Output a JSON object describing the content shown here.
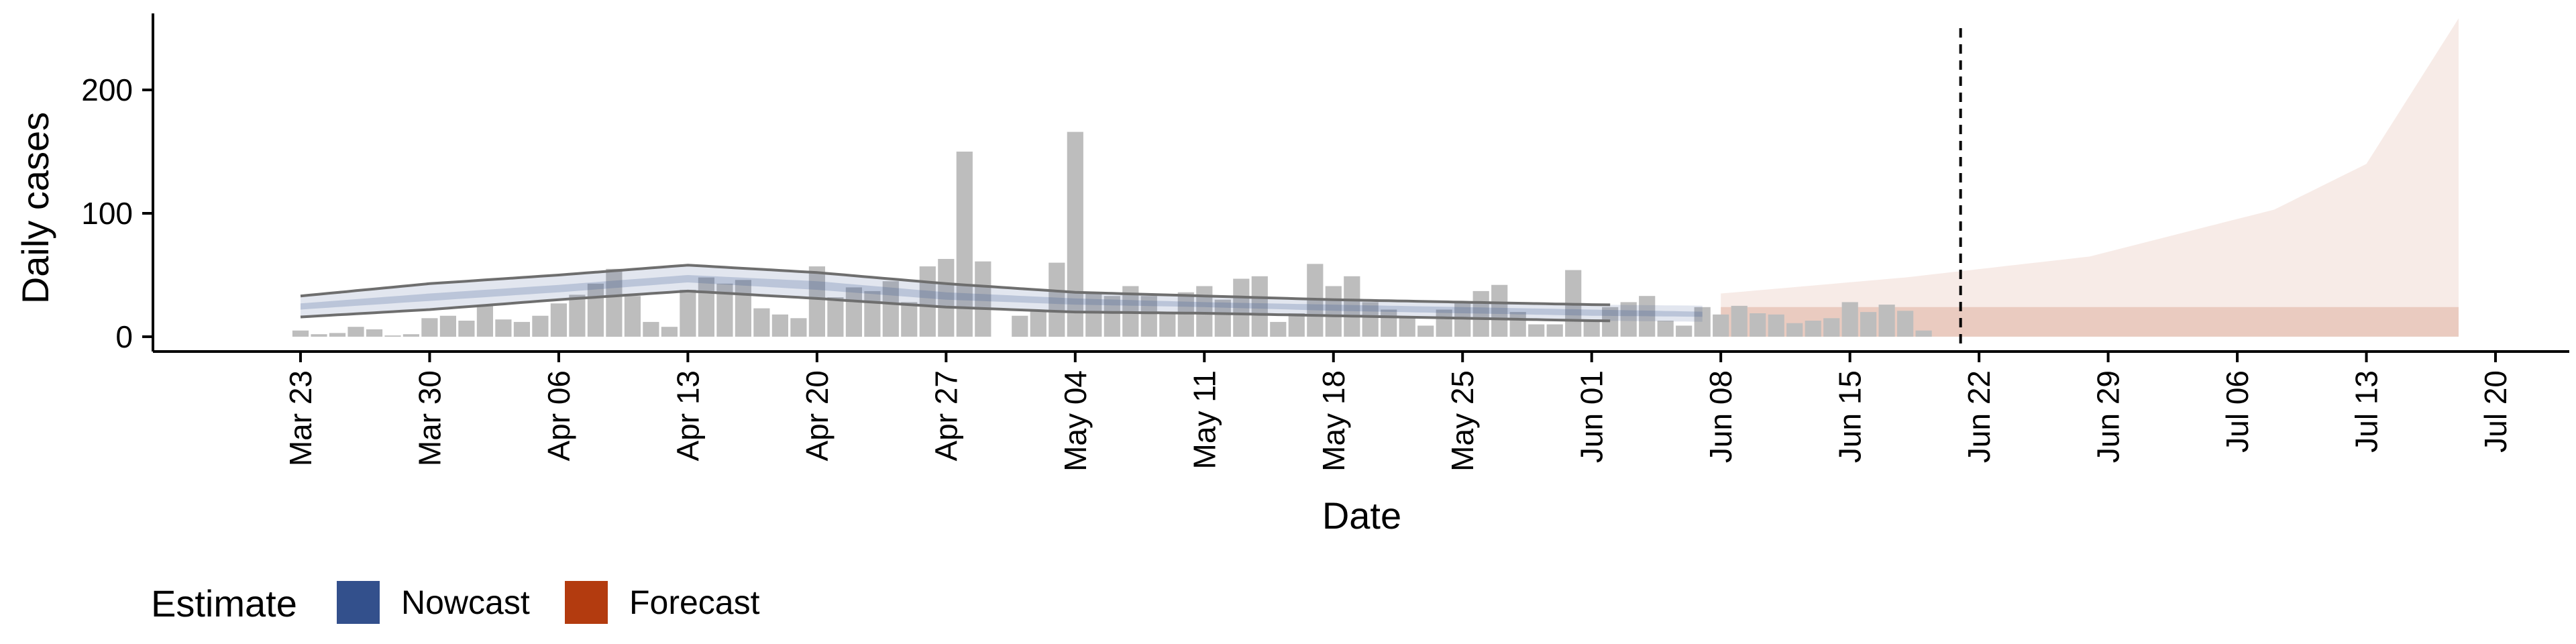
{
  "chart_data": {
    "type": "bar",
    "xlabel": "Date",
    "ylabel": "Daily cases",
    "ylim": [
      -12,
      262
    ],
    "yticks": [
      0,
      100,
      200
    ],
    "xlim": [
      "2020-03-15",
      "2020-07-24"
    ],
    "xticks": [
      {
        "date": "2020-03-23",
        "label": "Mar 23"
      },
      {
        "date": "2020-03-30",
        "label": "Mar 30"
      },
      {
        "date": "2020-04-06",
        "label": "Apr 06"
      },
      {
        "date": "2020-04-13",
        "label": "Apr 13"
      },
      {
        "date": "2020-04-20",
        "label": "Apr 20"
      },
      {
        "date": "2020-04-27",
        "label": "Apr 27"
      },
      {
        "date": "2020-05-04",
        "label": "May 04"
      },
      {
        "date": "2020-05-11",
        "label": "May 11"
      },
      {
        "date": "2020-05-18",
        "label": "May 18"
      },
      {
        "date": "2020-05-25",
        "label": "May 25"
      },
      {
        "date": "2020-06-01",
        "label": "Jun 01"
      },
      {
        "date": "2020-06-08",
        "label": "Jun 08"
      },
      {
        "date": "2020-06-15",
        "label": "Jun 15"
      },
      {
        "date": "2020-06-22",
        "label": "Jun 22"
      },
      {
        "date": "2020-06-29",
        "label": "Jun 29"
      },
      {
        "date": "2020-07-06",
        "label": "Jul 06"
      },
      {
        "date": "2020-07-13",
        "label": "Jul 13"
      },
      {
        "date": "2020-07-20",
        "label": "Jul 20"
      }
    ],
    "reference_line": {
      "date": "2020-06-21",
      "style": "dashed",
      "color": "#000000"
    },
    "colors": {
      "bars": "#bdbdbd",
      "nowcast": "#33508c",
      "forecast": "#b33b0f",
      "band_outline": "#6e6e6e"
    },
    "bars": {
      "start": "2020-03-23",
      "values": [
        5,
        2,
        3,
        8,
        6,
        1,
        2,
        15,
        17,
        13,
        25,
        14,
        12,
        17,
        27,
        34,
        43,
        55,
        33,
        12,
        8,
        38,
        48,
        43,
        46,
        23,
        18,
        15,
        57,
        32,
        40,
        37,
        45,
        28,
        57,
        63,
        150,
        61,
        0,
        17,
        21,
        60,
        166,
        36,
        33,
        41,
        33,
        20,
        36,
        41,
        30,
        47,
        49,
        12,
        19,
        59,
        41,
        49,
        28,
        22,
        16,
        9,
        22,
        28,
        37,
        42,
        20,
        10,
        10,
        54,
        13,
        24,
        28,
        33,
        13,
        9,
        24,
        18,
        25,
        19,
        18,
        11,
        13,
        15,
        28,
        20,
        26,
        21,
        5
      ]
    },
    "nowcast": {
      "start": "2020-03-23",
      "end": "2020-06-07",
      "outer_lower": [
        [
          0,
          16
        ],
        [
          7,
          22
        ],
        [
          14,
          30
        ],
        [
          21,
          37
        ],
        [
          28,
          31
        ],
        [
          35,
          24
        ],
        [
          42,
          20
        ],
        [
          49,
          19
        ],
        [
          56,
          17
        ],
        [
          63,
          15
        ],
        [
          70,
          13
        ],
        [
          77,
          12
        ]
      ],
      "outer_upper": [
        [
          0,
          33
        ],
        [
          7,
          43
        ],
        [
          14,
          50
        ],
        [
          21,
          58
        ],
        [
          28,
          52
        ],
        [
          35,
          43
        ],
        [
          42,
          36
        ],
        [
          49,
          33
        ],
        [
          56,
          30
        ],
        [
          63,
          28
        ],
        [
          70,
          26
        ],
        [
          77,
          25
        ]
      ],
      "inner_lower": [
        [
          0,
          22
        ],
        [
          7,
          29
        ],
        [
          14,
          36
        ],
        [
          21,
          44
        ],
        [
          28,
          38
        ],
        [
          35,
          30
        ],
        [
          42,
          26
        ],
        [
          49,
          24
        ],
        [
          56,
          21
        ],
        [
          63,
          19
        ],
        [
          70,
          17
        ],
        [
          77,
          16
        ]
      ],
      "inner_upper": [
        [
          0,
          27
        ],
        [
          7,
          35
        ],
        [
          14,
          42
        ],
        [
          21,
          50
        ],
        [
          28,
          45
        ],
        [
          35,
          36
        ],
        [
          42,
          31
        ],
        [
          49,
          28
        ],
        [
          56,
          26
        ],
        [
          63,
          24
        ],
        [
          70,
          22
        ],
        [
          77,
          20
        ]
      ]
    },
    "forecast": {
      "start": "2020-06-08",
      "end": "2020-07-18",
      "outer_lower": [
        [
          0,
          0
        ],
        [
          10,
          0
        ],
        [
          20,
          0
        ],
        [
          30,
          0
        ],
        [
          40,
          0
        ]
      ],
      "outer_upper": [
        [
          0,
          35
        ],
        [
          10,
          48
        ],
        [
          20,
          65
        ],
        [
          30,
          103
        ],
        [
          35,
          140
        ],
        [
          40,
          258
        ]
      ],
      "inner_lower": [
        [
          0,
          0
        ],
        [
          40,
          0
        ]
      ],
      "inner_upper": [
        [
          0,
          24
        ],
        [
          40,
          24
        ]
      ]
    },
    "legend": {
      "title": "Estimate",
      "items": [
        {
          "name": "Nowcast",
          "color": "#33508c"
        },
        {
          "name": "Forecast",
          "color": "#b33b0f"
        }
      ]
    }
  }
}
